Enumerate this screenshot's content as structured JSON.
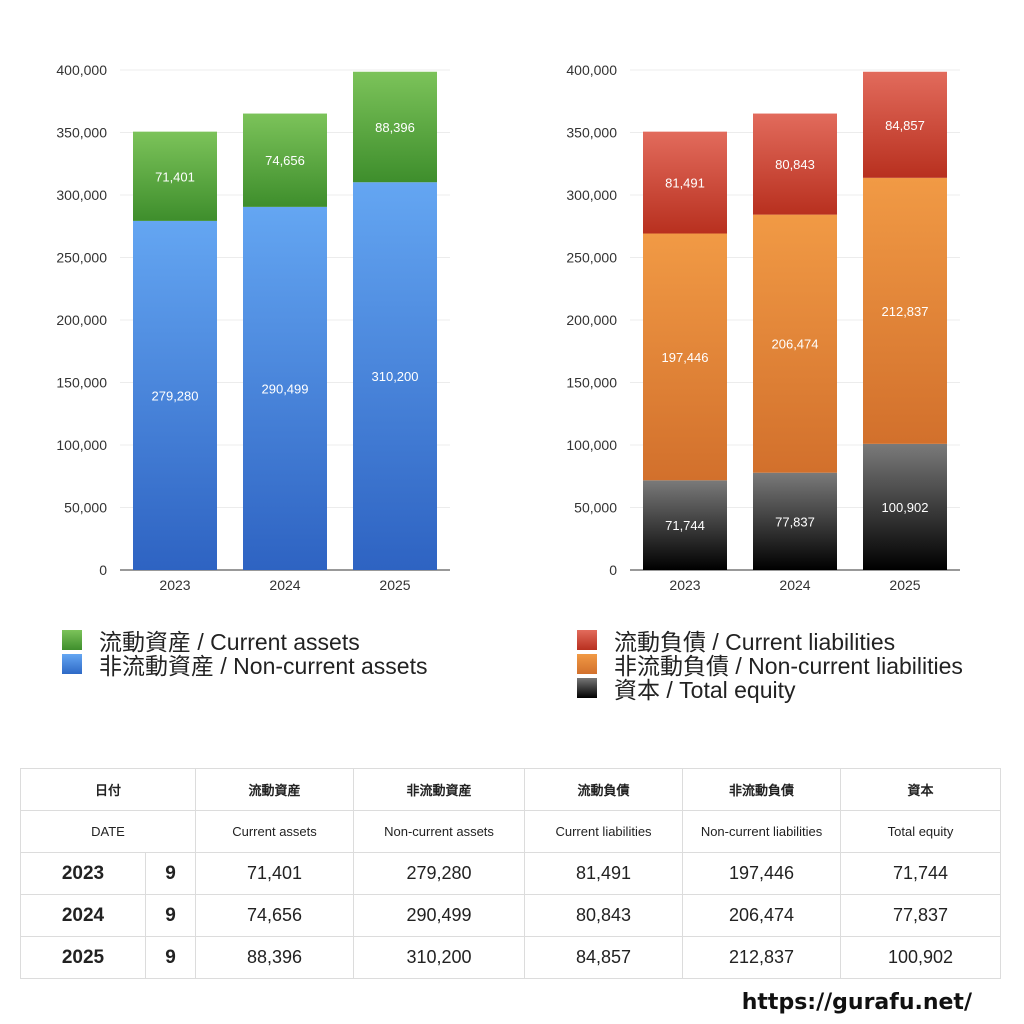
{
  "chart_data": [
    {
      "type": "bar",
      "stacked": true,
      "categories": [
        "2023",
        "2024",
        "2025"
      ],
      "series": [
        {
          "name": "非流動資産 / Non-current assets",
          "values": [
            279280,
            290499,
            310200
          ],
          "color": "#4a88e0"
        },
        {
          "name": "流動資産 / Current assets",
          "values": [
            71401,
            74656,
            88396
          ],
          "color": "#5aa83e"
        }
      ],
      "data_labels": {
        "series_0": [
          "279,280",
          "290,499",
          "310,200"
        ],
        "series_1": [
          "71,401",
          "74,656",
          "88,396"
        ]
      },
      "yticks": [
        "0",
        "50,000",
        "100,000",
        "150,000",
        "200,000",
        "250,000",
        "300,000",
        "350,000",
        "400,000"
      ],
      "ylim": [
        0,
        400000
      ],
      "grid": true,
      "legend_position": "bottom"
    },
    {
      "type": "bar",
      "stacked": true,
      "categories": [
        "2023",
        "2024",
        "2025"
      ],
      "series": [
        {
          "name": "資本 / Total equity",
          "values": [
            71744,
            77837,
            100902
          ],
          "color": "#333333"
        },
        {
          "name": "非流動負債 / Non-current liabilities",
          "values": [
            197446,
            206474,
            212837
          ],
          "color": "#e2843a"
        },
        {
          "name": "流動負債 / Current liabilities",
          "values": [
            81491,
            80843,
            84857
          ],
          "color": "#cc4331"
        }
      ],
      "data_labels": {
        "series_0": [
          "71,744",
          "77,837",
          "100,902"
        ],
        "series_1": [
          "197,446",
          "206,474",
          "212,837"
        ],
        "series_2": [
          "81,491",
          "80,843",
          "84,857"
        ]
      },
      "yticks": [
        "0",
        "50,000",
        "100,000",
        "150,000",
        "200,000",
        "250,000",
        "300,000",
        "350,000",
        "400,000"
      ],
      "ylim": [
        0,
        400000
      ],
      "grid": true,
      "legend_position": "bottom"
    }
  ],
  "legend_assets": [
    {
      "label": "流動資産 / Current assets",
      "swatch": "green"
    },
    {
      "label": "非流動資産 / Non-current assets",
      "swatch": "blue"
    }
  ],
  "legend_liabilities": [
    {
      "label": "流動負債 / Current liabilities",
      "swatch": "red"
    },
    {
      "label": "非流動負債 / Non-current liabilities",
      "swatch": "orange"
    },
    {
      "label": "資本 / Total equity",
      "swatch": "black"
    }
  ],
  "table": {
    "headers_jp": [
      "日付",
      "流動資産",
      "非流動資産",
      "流動負債",
      "非流動負債",
      "資本"
    ],
    "headers_en": [
      "DATE",
      "Current assets",
      "Non-current assets",
      "Current liabilities",
      "Non-current liabilities",
      "Total equity"
    ],
    "rows": [
      {
        "year": "2023",
        "month": "9",
        "values": [
          "71,401",
          "279,280",
          "81,491",
          "197,446",
          "71,744"
        ]
      },
      {
        "year": "2024",
        "month": "9",
        "values": [
          "74,656",
          "290,499",
          "80,843",
          "206,474",
          "77,837"
        ]
      },
      {
        "year": "2025",
        "month": "9",
        "values": [
          "88,396",
          "310,200",
          "84,857",
          "212,837",
          "100,902"
        ]
      }
    ]
  },
  "footer": {
    "url": "https://gurafu.net/"
  }
}
